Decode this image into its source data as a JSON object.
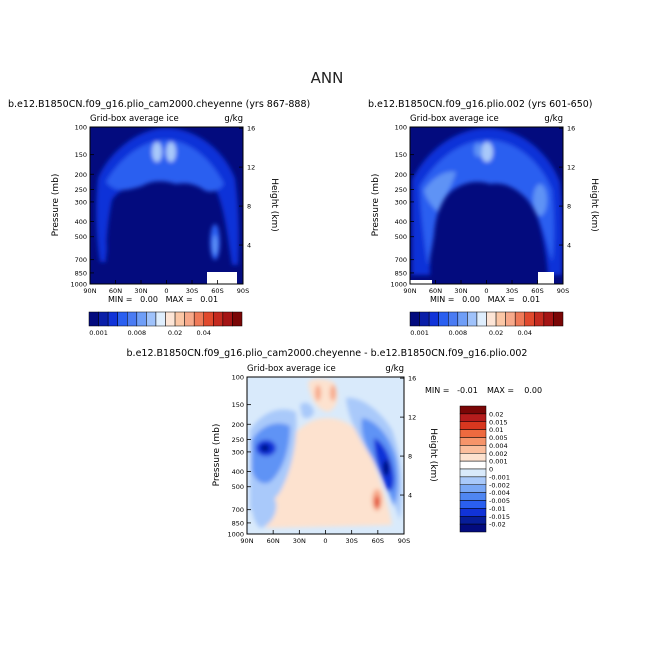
{
  "page_title": "ANN",
  "colors": {
    "dark_blue": "#030b7e",
    "blue": "#1133d8",
    "mid_blue": "#2a5ff0",
    "light_blue": "#5e93f5",
    "pale_blue": "#a9c9fa",
    "very_pale_blue": "#d9eafb",
    "pale_orange": "#fde2cf",
    "orange": "#f7a98a",
    "red": "#e0492d",
    "dark_red": "#8a0b0b"
  },
  "chart_data": [
    {
      "type": "contour",
      "title": "b.e12.B1850CN.f09_g16.plio_cam2000.cheyenne (yrs 867-888)",
      "left_subtitle": "Grid-box average ice",
      "right_subtitle": "g/kg",
      "xlabel": "",
      "ylabel": "Pressure (mb)",
      "right_axis_label": "Height (km)",
      "x_ticks": [
        "90N",
        "60N",
        "30N",
        "0",
        "30S",
        "60S",
        "90S"
      ],
      "y_ticks": [
        "100",
        "150",
        "200",
        "250",
        "300",
        "400",
        "500",
        "700",
        "850",
        "1000"
      ],
      "height_ticks": [
        "16",
        "12",
        "8",
        "4"
      ],
      "stats": "MIN =   0.00   MAX =   0.01",
      "colorbar_labels": [
        "0.001",
        "0.008",
        "0.02",
        "0.04"
      ],
      "ylim": [
        100,
        1000
      ],
      "y_scale": "log"
    },
    {
      "type": "contour",
      "title": "b.e12.B1850CN.f09_g16.plio.002 (yrs 601-650)",
      "left_subtitle": "Grid-box average ice",
      "right_subtitle": "g/kg",
      "xlabel": "",
      "ylabel": "Pressure (mb)",
      "right_axis_label": "Height (km)",
      "x_ticks": [
        "90N",
        "60N",
        "30N",
        "0",
        "30S",
        "60S",
        "90S"
      ],
      "y_ticks": [
        "100",
        "150",
        "200",
        "250",
        "300",
        "400",
        "500",
        "700",
        "850",
        "1000"
      ],
      "height_ticks": [
        "16",
        "12",
        "8",
        "4"
      ],
      "stats": "MIN =   0.00   MAX =   0.01",
      "colorbar_labels": [
        "0.001",
        "0.008",
        "0.02",
        "0.04"
      ],
      "ylim": [
        100,
        1000
      ],
      "y_scale": "log"
    },
    {
      "type": "contour",
      "title": "b.e12.B1850CN.f09_g16.plio_cam2000.cheyenne - b.e12.B1850CN.f09_g16.plio.002",
      "left_subtitle": "Grid-box average ice",
      "right_subtitle": "g/kg",
      "xlabel": "",
      "ylabel": "Pressure (mb)",
      "right_axis_label": "Height (km)",
      "x_ticks": [
        "90N",
        "60N",
        "30N",
        "0",
        "30S",
        "60S",
        "90S"
      ],
      "y_ticks": [
        "100",
        "150",
        "200",
        "250",
        "300",
        "400",
        "500",
        "700",
        "850",
        "1000"
      ],
      "height_ticks": [
        "16",
        "12",
        "8",
        "4"
      ],
      "stats_min": "MIN =   -0.01",
      "stats_max": "MAX =    0.00",
      "colorbar_labels": [
        "0.02",
        "0.015",
        "0.01",
        "0.005",
        "0.004",
        "0.002",
        "0.001",
        "0",
        "-0.001",
        "-0.002",
        "-0.004",
        "-0.005",
        "-0.01",
        "-0.015",
        "-0.02"
      ],
      "ylim": [
        100,
        1000
      ],
      "y_scale": "log"
    }
  ]
}
